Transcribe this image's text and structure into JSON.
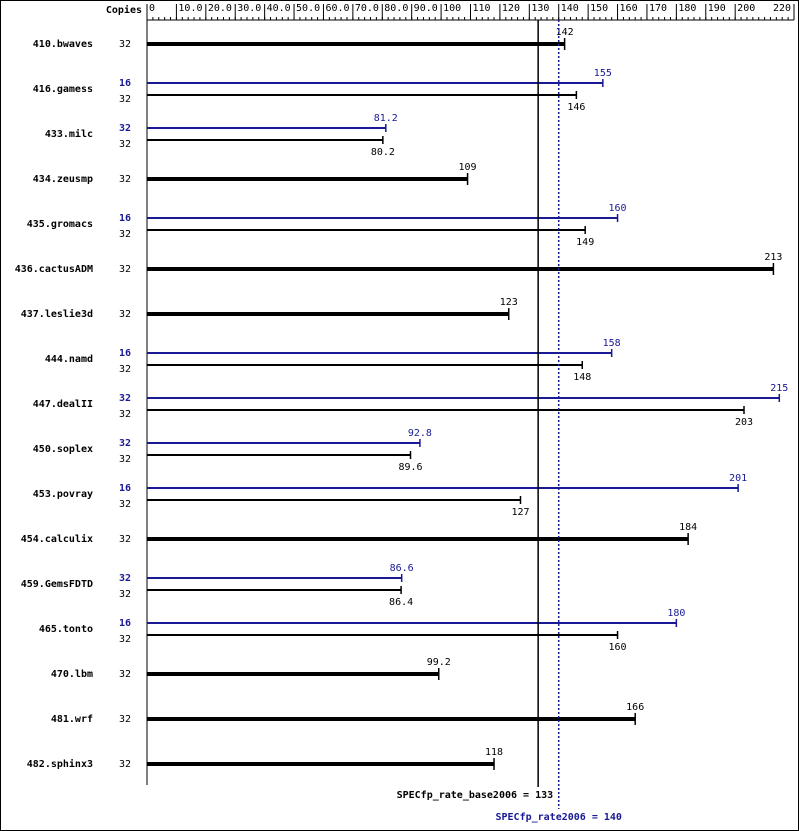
{
  "chart_data": {
    "type": "bar",
    "orientation": "horizontal",
    "copies_header": "Copies",
    "categories": [
      "410.bwaves",
      "416.gamess",
      "433.milc",
      "434.zeusmp",
      "435.gromacs",
      "436.cactusADM",
      "437.leslie3d",
      "444.namd",
      "447.dealII",
      "450.soplex",
      "453.povray",
      "454.calculix",
      "459.GemsFDTD",
      "465.tonto",
      "470.lbm",
      "481.wrf",
      "482.sphinx3"
    ],
    "series": [
      {
        "color": "#000000",
        "copies": [
          32,
          32,
          32,
          32,
          32,
          32,
          32,
          32,
          32,
          32,
          32,
          32,
          32,
          32,
          32,
          32,
          32
        ],
        "values": [
          142,
          146,
          80.2,
          109,
          149,
          213,
          123,
          148,
          203,
          89.6,
          127,
          184,
          86.4,
          160,
          99.2,
          166,
          118
        ]
      },
      {
        "color": "#191996",
        "copies": [
          null,
          16,
          32,
          null,
          16,
          null,
          null,
          16,
          32,
          32,
          16,
          null,
          32,
          16,
          null,
          null,
          null
        ],
        "values": [
          null,
          155,
          81.2,
          null,
          160,
          null,
          null,
          158,
          215,
          92.8,
          201,
          null,
          86.6,
          180,
          null,
          null,
          null
        ]
      }
    ],
    "xlim": [
      0,
      220
    ],
    "xticks": [
      0,
      {
        "value": 10,
        "label": "10.0"
      },
      {
        "value": 20,
        "label": "20.0"
      },
      {
        "value": 30,
        "label": "30.0"
      },
      {
        "value": 40,
        "label": "40.0"
      },
      {
        "value": 50,
        "label": "50.0"
      },
      {
        "value": 60,
        "label": "60.0"
      },
      {
        "value": 70,
        "label": "70.0"
      },
      {
        "value": 80,
        "label": "80.0"
      },
      {
        "value": 90,
        "label": "90.0"
      },
      100,
      110,
      120,
      130,
      140,
      150,
      160,
      170,
      180,
      190,
      200,
      220
    ],
    "reference_lines": [
      {
        "value": 133,
        "label": "SPECfp_rate_base2006 = 133",
        "color": "#000000",
        "style": "solid"
      },
      {
        "value": 140,
        "label": "SPECfp_rate2006 = 140",
        "color": "#191996",
        "style": "dotted"
      }
    ]
  }
}
